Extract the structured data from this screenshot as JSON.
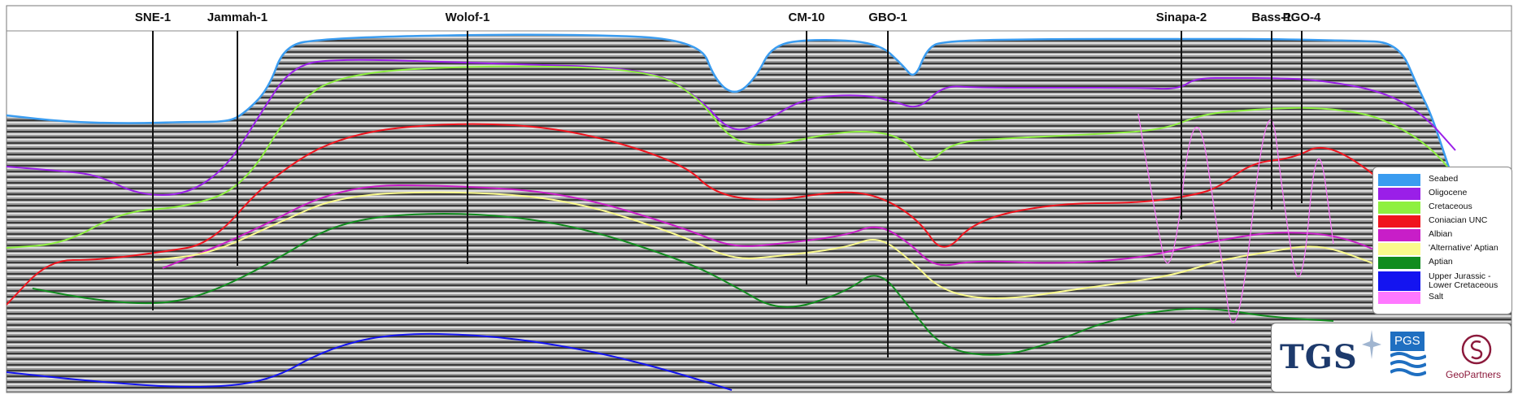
{
  "wells": [
    {
      "name": "SNE-1"
    },
    {
      "name": "Jammah-1"
    },
    {
      "name": "Wolof-1"
    },
    {
      "name": "CM-10"
    },
    {
      "name": "GBO-1"
    },
    {
      "name": "Sinapa-2"
    },
    {
      "name": "Bass-1"
    },
    {
      "name": "PGO-4"
    }
  ],
  "legend": {
    "items": [
      {
        "label": "Seabed",
        "color": "#3a9cf0"
      },
      {
        "label": "Oligocene",
        "color": "#9a1fe8"
      },
      {
        "label": "Cretaceous",
        "color": "#8ef040"
      },
      {
        "label": "Coniacian UNC",
        "color": "#f0141e"
      },
      {
        "label": "Albian",
        "color": "#c81ec8"
      },
      {
        "label": "'Alternative' Aptian",
        "color": "#fafa8c"
      },
      {
        "label": "Aptian",
        "color": "#118c1e"
      },
      {
        "label": "Upper Jurassic - Lower Cretaceous",
        "color": "#1414f0"
      },
      {
        "label": "Salt",
        "color": "#ff78ff"
      }
    ]
  },
  "logos": {
    "tgs": "TGS",
    "pgs": "PGS",
    "geopartners": "GeoPartners"
  }
}
